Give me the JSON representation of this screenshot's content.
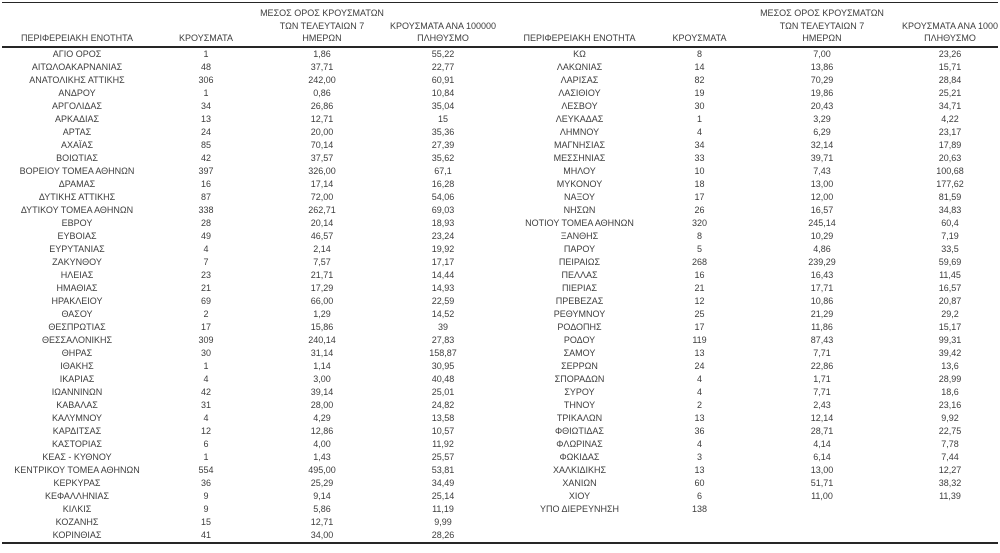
{
  "table": {
    "headers": {
      "region": "ΠΕΡΙΦΕΡΕΙΑΚΗ ΕΝΟΤΗΤΑ",
      "cases": "ΚΡΟΥΣΜΑΤΑ",
      "avg7_lines": [
        "ΜΕΣΟΣ ΟΡΟΣ ΚΡΟΥΣΜΑΤΩΝ",
        "ΤΩΝ ΤΕΛΕΥΤΑΙΩΝ 7",
        "ΗΜΕΡΩΝ"
      ],
      "per100k_lines": [
        "ΚΡΟΥΣΜΑΤΑ ΑΝΑ 100000",
        "ΠΛΗΘΥΣΜΟ"
      ]
    },
    "left_rows": [
      [
        "ΑΓΙΟ ΟΡΟΣ",
        "1",
        "1,86",
        "55,22"
      ],
      [
        "ΑΙΤΩΛΟΑΚΑΡΝΑΝΙΑΣ",
        "48",
        "37,71",
        "22,77"
      ],
      [
        "ΑΝΑΤΟΛΙΚΗΣ ΑΤΤΙΚΗΣ",
        "306",
        "242,00",
        "60,91"
      ],
      [
        "ΑΝΔΡΟΥ",
        "1",
        "0,86",
        "10,84"
      ],
      [
        "ΑΡΓΟΛΙΔΑΣ",
        "34",
        "26,86",
        "35,04"
      ],
      [
        "ΑΡΚΑΔΙΑΣ",
        "13",
        "12,71",
        "15"
      ],
      [
        "ΑΡΤΑΣ",
        "24",
        "20,00",
        "35,36"
      ],
      [
        "ΑΧΑΪΑΣ",
        "85",
        "70,14",
        "27,39"
      ],
      [
        "ΒΟΙΩΤΙΑΣ",
        "42",
        "37,57",
        "35,62"
      ],
      [
        "ΒΟΡΕΙΟΥ ΤΟΜΕΑ ΑΘΗΝΩΝ",
        "397",
        "326,00",
        "67,1"
      ],
      [
        "ΔΡΑΜΑΣ",
        "16",
        "17,14",
        "16,28"
      ],
      [
        "ΔΥΤΙΚΗΣ ΑΤΤΙΚΗΣ",
        "87",
        "72,00",
        "54,06"
      ],
      [
        "ΔΥΤΙΚΟΥ ΤΟΜΕΑ ΑΘΗΝΩΝ",
        "338",
        "262,71",
        "69,03"
      ],
      [
        "ΕΒΡΟΥ",
        "28",
        "20,14",
        "18,93"
      ],
      [
        "ΕΥΒΟΙΑΣ",
        "49",
        "46,57",
        "23,24"
      ],
      [
        "ΕΥΡΥΤΑΝΙΑΣ",
        "4",
        "2,14",
        "19,92"
      ],
      [
        "ΖΑΚΥΝΘΟΥ",
        "7",
        "7,57",
        "17,17"
      ],
      [
        "ΗΛΕΙΑΣ",
        "23",
        "21,71",
        "14,44"
      ],
      [
        "ΗΜΑΘΙΑΣ",
        "21",
        "17,29",
        "14,93"
      ],
      [
        "ΗΡΑΚΛΕΙΟΥ",
        "69",
        "66,00",
        "22,59"
      ],
      [
        "ΘΑΣΟΥ",
        "2",
        "1,29",
        "14,52"
      ],
      [
        "ΘΕΣΠΡΩΤΙΑΣ",
        "17",
        "15,86",
        "39"
      ],
      [
        "ΘΕΣΣΑΛΟΝΙΚΗΣ",
        "309",
        "240,14",
        "27,83"
      ],
      [
        "ΘΗΡΑΣ",
        "30",
        "31,14",
        "158,87"
      ],
      [
        "ΙΘΑΚΗΣ",
        "1",
        "1,14",
        "30,95"
      ],
      [
        "ΙΚΑΡΙΑΣ",
        "4",
        "3,00",
        "40,48"
      ],
      [
        "ΙΩΑΝΝΙΝΩΝ",
        "42",
        "39,14",
        "25,01"
      ],
      [
        "ΚΑΒΑΛΑΣ",
        "31",
        "28,00",
        "24,82"
      ],
      [
        "ΚΑΛΥΜΝΟΥ",
        "4",
        "4,29",
        "13,58"
      ],
      [
        "ΚΑΡΔΙΤΣΑΣ",
        "12",
        "12,86",
        "10,57"
      ],
      [
        "ΚΑΣΤΟΡΙΑΣ",
        "6",
        "4,00",
        "11,92"
      ],
      [
        "ΚΕΑΣ - ΚΥΘΝΟΥ",
        "1",
        "1,43",
        "25,57"
      ],
      [
        "ΚΕΝΤΡΙΚΟΥ ΤΟΜΕΑ ΑΘΗΝΩΝ",
        "554",
        "495,00",
        "53,81"
      ],
      [
        "ΚΕΡΚΥΡΑΣ",
        "36",
        "25,29",
        "34,49"
      ],
      [
        "ΚΕΦΑΛΛΗΝΙΑΣ",
        "9",
        "9,14",
        "25,14"
      ],
      [
        "ΚΙΛΚΙΣ",
        "9",
        "5,86",
        "11,19"
      ],
      [
        "ΚΟΖΑΝΗΣ",
        "15",
        "12,71",
        "9,99"
      ],
      [
        "ΚΟΡΙΝΘΙΑΣ",
        "41",
        "34,00",
        "28,26"
      ]
    ],
    "right_rows": [
      [
        "ΚΩ",
        "8",
        "7,00",
        "23,26"
      ],
      [
        "ΛΑΚΩΝΙΑΣ",
        "14",
        "13,86",
        "15,71"
      ],
      [
        "ΛΑΡΙΣΑΣ",
        "82",
        "70,29",
        "28,84"
      ],
      [
        "ΛΑΣΙΘΙΟΥ",
        "19",
        "19,86",
        "25,21"
      ],
      [
        "ΛΕΣΒΟΥ",
        "30",
        "20,43",
        "34,71"
      ],
      [
        "ΛΕΥΚΑΔΑΣ",
        "1",
        "3,29",
        "4,22"
      ],
      [
        "ΛΗΜΝΟΥ",
        "4",
        "6,29",
        "23,17"
      ],
      [
        "ΜΑΓΝΗΣΙΑΣ",
        "34",
        "32,14",
        "17,89"
      ],
      [
        "ΜΕΣΣΗΝΙΑΣ",
        "33",
        "39,71",
        "20,63"
      ],
      [
        "ΜΗΛΟΥ",
        "10",
        "7,43",
        "100,68"
      ],
      [
        "ΜΥΚΟΝΟΥ",
        "18",
        "13,00",
        "177,62"
      ],
      [
        "ΝΑΞΟΥ",
        "17",
        "12,00",
        "81,59"
      ],
      [
        "ΝΗΣΩΝ",
        "26",
        "16,57",
        "34,83"
      ],
      [
        "ΝΟΤΙΟΥ ΤΟΜΕΑ ΑΘΗΝΩΝ",
        "320",
        "245,14",
        "60,4"
      ],
      [
        "ΞΑΝΘΗΣ",
        "8",
        "10,29",
        "7,19"
      ],
      [
        "ΠΑΡΟΥ",
        "5",
        "4,86",
        "33,5"
      ],
      [
        "ΠΕΙΡΑΙΩΣ",
        "268",
        "239,29",
        "59,69"
      ],
      [
        "ΠΕΛΛΑΣ",
        "16",
        "16,43",
        "11,45"
      ],
      [
        "ΠΙΕΡΙΑΣ",
        "21",
        "17,71",
        "16,57"
      ],
      [
        "ΠΡΕΒΕΖΑΣ",
        "12",
        "10,86",
        "20,87"
      ],
      [
        "ΡΕΘΥΜΝΟΥ",
        "25",
        "21,29",
        "29,2"
      ],
      [
        "ΡΟΔΟΠΗΣ",
        "17",
        "11,86",
        "15,17"
      ],
      [
        "ΡΟΔΟΥ",
        "119",
        "87,43",
        "99,31"
      ],
      [
        "ΣΑΜΟΥ",
        "13",
        "7,71",
        "39,42"
      ],
      [
        "ΣΕΡΡΩΝ",
        "24",
        "22,86",
        "13,6"
      ],
      [
        "ΣΠΟΡΑΔΩΝ",
        "4",
        "1,71",
        "28,99"
      ],
      [
        "ΣΥΡΟΥ",
        "4",
        "7,71",
        "18,6"
      ],
      [
        "ΤΗΝΟΥ",
        "2",
        "2,43",
        "23,16"
      ],
      [
        "ΤΡΙΚΑΛΩΝ",
        "13",
        "12,14",
        "9,92"
      ],
      [
        "ΦΘΙΩΤΙΔΑΣ",
        "36",
        "28,71",
        "22,75"
      ],
      [
        "ΦΛΩΡΙΝΑΣ",
        "4",
        "4,14",
        "7,78"
      ],
      [
        "ΦΩΚΙΔΑΣ",
        "3",
        "6,14",
        "7,44"
      ],
      [
        "ΧΑΛΚΙΔΙΚΗΣ",
        "13",
        "13,00",
        "12,27"
      ],
      [
        "ΧΑΝΙΩΝ",
        "60",
        "51,71",
        "38,32"
      ],
      [
        "ΧΙΟΥ",
        "6",
        "11,00",
        "11,39"
      ],
      [
        "ΥΠΟ ΔΙΕΡΕΥΝΗΣΗ",
        "138",
        "",
        ""
      ]
    ]
  }
}
